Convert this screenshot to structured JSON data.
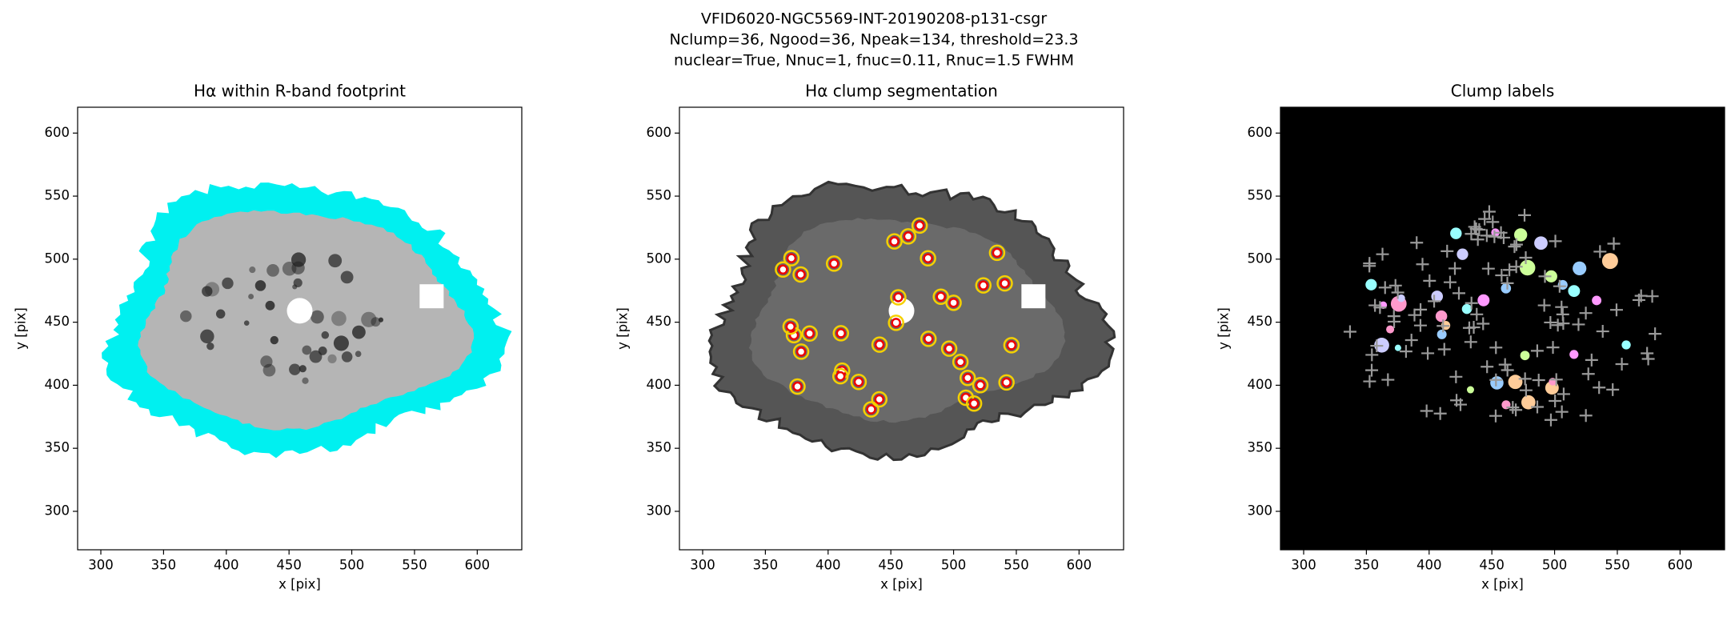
{
  "figure": {
    "title": [
      "VFID6020-NGC5569-INT-20190208-p131-csgr",
      "Nclump=36, Ngood=36, Npeak=134, threshold=23.3",
      "nuclear=True, Nnuc=1, fnuc=0.11, Rnuc=1.5 FWHM"
    ]
  },
  "chart_data": [
    {
      "type": "image",
      "title": "Hα within R-band footprint",
      "xlabel": "x [pix]",
      "ylabel": "y [pix]",
      "xlim": [
        281.5,
        635.5
      ],
      "ylim": [
        269.5,
        620.5
      ],
      "xticks": [
        300,
        350,
        400,
        450,
        500,
        550,
        600
      ],
      "yticks": [
        300,
        350,
        400,
        450,
        500,
        550,
        600
      ]
    },
    {
      "type": "image",
      "title": "Hα clump segmentation",
      "xlabel": "x [pix]",
      "ylabel": "y [pix]",
      "xlim": [
        281.5,
        635.5
      ],
      "ylim": [
        269.5,
        620.5
      ],
      "xticks": [
        300,
        350,
        400,
        450,
        500,
        550,
        600
      ],
      "yticks": [
        300,
        350,
        400,
        450,
        500,
        550,
        600
      ]
    },
    {
      "type": "image",
      "title": "Clump labels",
      "xlabel": "x [pix]",
      "ylabel": "y [pix]",
      "xlim": [
        281.5,
        635.5
      ],
      "ylim": [
        269.5,
        620.5
      ],
      "xticks": [
        300,
        350,
        400,
        450,
        500,
        550,
        600
      ],
      "yticks": [
        300,
        350,
        400,
        450,
        500,
        550,
        600
      ]
    }
  ]
}
